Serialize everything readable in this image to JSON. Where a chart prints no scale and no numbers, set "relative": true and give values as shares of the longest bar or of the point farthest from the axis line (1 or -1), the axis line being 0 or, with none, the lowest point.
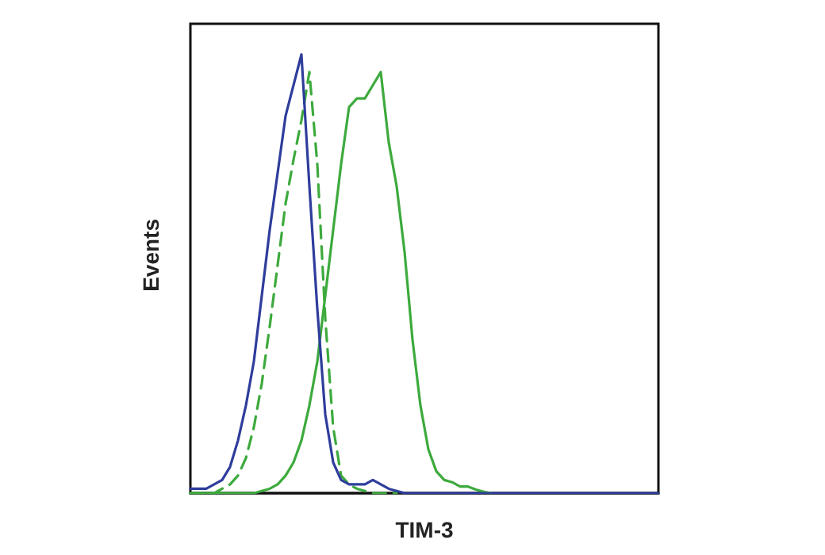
{
  "chart_data": {
    "type": "line",
    "relative": true,
    "xlabel": "TIM-3",
    "ylabel": "Events",
    "grid": false,
    "marker": "none",
    "categories": [
      null,
      null,
      null,
      null,
      null,
      null,
      null,
      null,
      null,
      null,
      null,
      null,
      null,
      null,
      null,
      null,
      null,
      null,
      null,
      null,
      null,
      null,
      null,
      null,
      null,
      null,
      null,
      null,
      null,
      null,
      null,
      null,
      null,
      null,
      null,
      null,
      null,
      null,
      null,
      null,
      null,
      null,
      null,
      null,
      null,
      null,
      null,
      null,
      null,
      null,
      null,
      null,
      null,
      null,
      null,
      null,
      null,
      null,
      null,
      null
    ],
    "series": [
      {
        "color": "#2e3d9c",
        "line_style": "solid",
        "values": [
          0.01,
          0.01,
          0.01,
          0.02,
          0.03,
          0.06,
          0.12,
          0.2,
          0.3,
          0.45,
          0.6,
          0.73,
          0.86,
          0.93,
          1,
          0.7,
          0.42,
          0.18,
          0.07,
          0.03,
          0.02,
          0.02,
          0.02,
          0.03,
          0.02,
          0.01,
          0.005,
          0,
          0,
          0,
          0,
          0,
          0,
          0,
          0,
          0,
          0,
          0,
          0,
          0,
          0,
          0,
          0,
          0,
          0,
          0,
          0,
          0,
          0,
          0,
          0,
          0,
          0,
          0,
          0,
          0,
          0,
          0,
          0,
          0
        ]
      },
      {
        "color": "#3daa3d",
        "line_style": "dashed",
        "values": [
          0,
          0,
          0,
          0,
          0.01,
          0.02,
          0.04,
          0.08,
          0.15,
          0.25,
          0.38,
          0.52,
          0.66,
          0.76,
          0.85,
          0.96,
          0.75,
          0.4,
          0.15,
          0.04,
          0.02,
          0.01,
          0.005,
          0,
          0,
          0,
          0,
          null,
          null,
          null,
          null,
          null,
          null,
          null,
          null,
          null,
          null,
          null,
          null,
          null,
          null,
          null,
          null,
          null,
          null,
          null,
          null,
          null,
          null,
          null,
          null,
          null,
          null,
          null,
          null,
          null,
          null,
          null,
          null,
          null
        ]
      },
      {
        "color": "#3daa3d",
        "line_style": "solid",
        "values": [
          0,
          0,
          0,
          0,
          0,
          0,
          0,
          0,
          0,
          0.005,
          0.01,
          0.02,
          0.04,
          0.07,
          0.12,
          0.2,
          0.3,
          0.45,
          0.6,
          0.75,
          0.88,
          0.9,
          0.9,
          0.93,
          0.96,
          0.8,
          0.7,
          0.55,
          0.35,
          0.2,
          0.1,
          0.05,
          0.03,
          0.025,
          0.015,
          0.015,
          0.008,
          0.003,
          0,
          null,
          null,
          null,
          null,
          null,
          null,
          null,
          null,
          null,
          null,
          null,
          null,
          null,
          null,
          null,
          null,
          null,
          null,
          null,
          null,
          null
        ]
      }
    ]
  }
}
